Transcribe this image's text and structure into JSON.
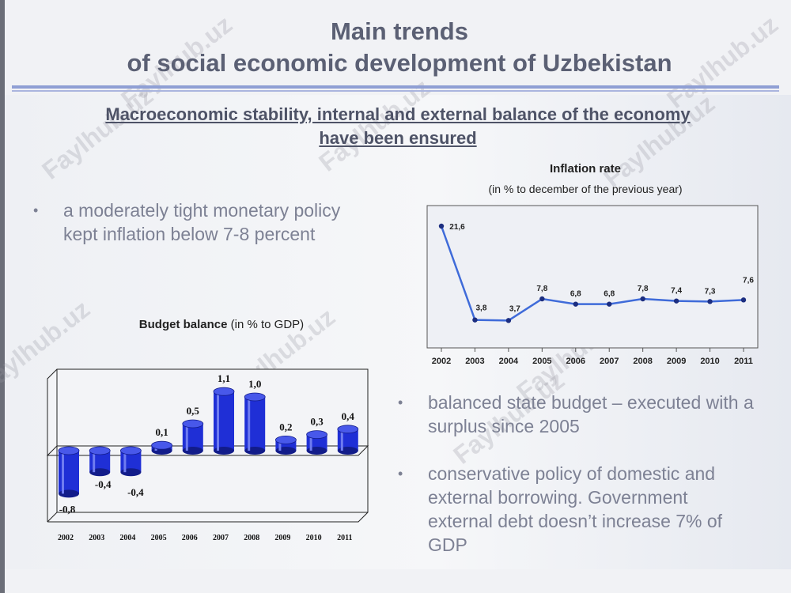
{
  "title": {
    "line1": "Main trends",
    "line2": "of social economic development of Uzbekistan"
  },
  "subtitle": {
    "line1": "Macroeconomic stability, internal and external balance of the economy",
    "line2": "have been ensured"
  },
  "bullets": {
    "inflation_line1": "a moderately tight monetary policy",
    "inflation_line2": "kept inflation below 7-8 percent",
    "budget_line1": "balanced state budget – executed with a",
    "budget_line2": "surplus since 2005",
    "debt_line1": "conservative policy of domestic and",
    "debt_line2": "external borrowing. Government",
    "debt_line3": "external debt doesn’t increase 7% of",
    "debt_line4": "GDP",
    "marker": "•"
  },
  "watermark": "Faylhub.uz",
  "chart_data": [
    {
      "type": "line",
      "title": "Inflation rate",
      "subtitle": "(in % to december of the previous year)",
      "categories": [
        "2002",
        "2003",
        "2004",
        "2005",
        "2006",
        "2007",
        "2008",
        "2009",
        "2010",
        "2011"
      ],
      "values": [
        21.6,
        3.8,
        3.7,
        7.8,
        6.8,
        6.8,
        7.8,
        7.4,
        7.3,
        7.6
      ],
      "labels": [
        "21,6",
        "3,8",
        "3,7",
        "7,8",
        "6,8",
        "6,8",
        "7,8",
        "7,4",
        "7,3",
        "7,6"
      ],
      "ylim": [
        0,
        24
      ],
      "grid": false,
      "color": "#3f6bd9"
    },
    {
      "type": "bar",
      "title_bold": "Budget balance",
      "title_rest": "(in % to GDP)",
      "categories": [
        "2002",
        "2003",
        "2004",
        "2005",
        "2006",
        "2007",
        "2008",
        "2009",
        "2010",
        "2011"
      ],
      "values": [
        -0.8,
        -0.4,
        -0.4,
        0.1,
        0.5,
        1.1,
        1.0,
        0.2,
        0.3,
        0.4
      ],
      "labels": [
        "-0,8",
        "-0,4",
        "-0,4",
        "0,1",
        "0,5",
        "1,1",
        "1,0",
        "0,2",
        "0,3",
        "0,4"
      ],
      "ylim": [
        -1.0,
        1.3
      ],
      "grid": false,
      "color": "#1f2fd6"
    }
  ]
}
